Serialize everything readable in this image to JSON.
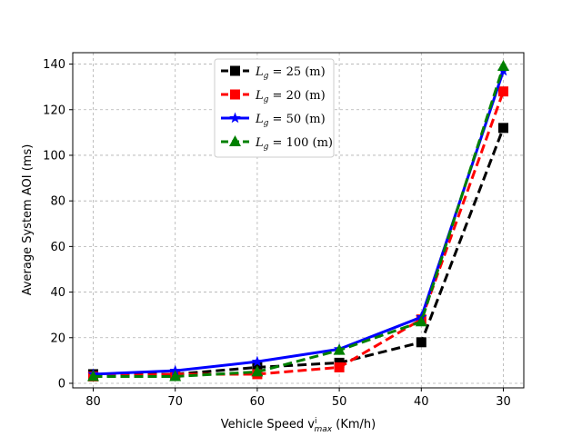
{
  "chart_data": {
    "type": "line",
    "x": [
      "80",
      "70",
      "60",
      "50",
      "40",
      "30"
    ],
    "xlabel": "Vehicle Speed v",
    "xlabel_sup": "i",
    "xlabel_sub": "max",
    "xlabel_unit": "(Km/h)",
    "ylabel": "Average System AOI (ms)",
    "ylim": [
      -2,
      145
    ],
    "yticks": [
      0,
      20,
      40,
      60,
      80,
      100,
      120,
      140
    ],
    "grid": true,
    "legend_position": "top-center",
    "series": [
      {
        "name": "L",
        "sub": "g",
        "rest": " = 25 (m)",
        "color": "#000000",
        "marker": "square",
        "dash": "10,5",
        "values": [
          4,
          4,
          7,
          9,
          18,
          112
        ]
      },
      {
        "name": "L",
        "sub": "g",
        "rest": " = 20 (m)",
        "color": "#ff0000",
        "marker": "square",
        "dash": "10,5",
        "values": [
          3,
          4,
          4,
          7,
          28,
          128
        ]
      },
      {
        "name": "L",
        "sub": "g",
        "rest": " = 50 (m)",
        "color": "#0000ff",
        "marker": "star",
        "dash": "",
        "values": [
          4,
          5.5,
          9.5,
          15,
          29,
          137
        ]
      },
      {
        "name": "L",
        "sub": "g",
        "rest": " = 100 (m)",
        "color": "#008000",
        "marker": "triangle",
        "dash": "10,5",
        "values": [
          3,
          3,
          5,
          14.5,
          27,
          139
        ]
      }
    ]
  }
}
